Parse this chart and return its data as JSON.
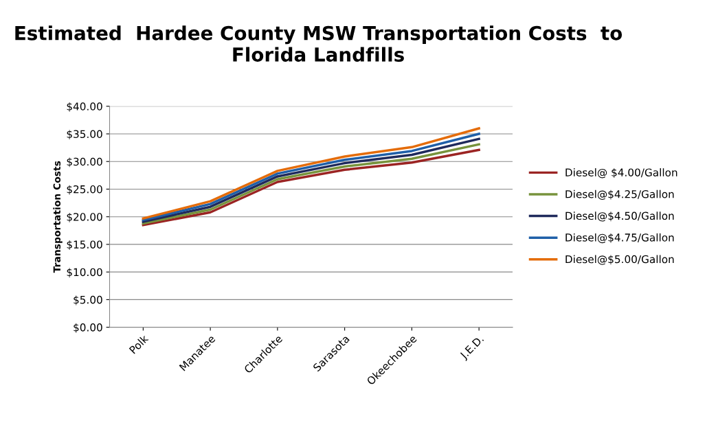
{
  "chart_data": {
    "type": "line",
    "title": "Estimated  Hardee County MSW Transportation Costs  to Florida Landfills",
    "ylabel": "Transportation Costs",
    "categories": [
      "Polk",
      "Manatee",
      "Charlotte",
      "Sarasota",
      "Okeechobee",
      "J.E.D."
    ],
    "series": [
      {
        "name": "Diesel@ $4.00/Gallon",
        "color": "#9b2423",
        "values": [
          18.5,
          20.8,
          26.3,
          28.5,
          29.8,
          32.1
        ]
      },
      {
        "name": "Diesel@$4.25/Gallon",
        "color": "#77933c",
        "values": [
          18.8,
          21.3,
          26.8,
          29.1,
          30.5,
          33.1
        ]
      },
      {
        "name": "Diesel@$4.50/Gallon",
        "color": "#1f2a5c",
        "values": [
          19.1,
          21.8,
          27.3,
          29.7,
          31.2,
          34.1
        ]
      },
      {
        "name": "Diesel@$4.75/Gallon",
        "color": "#1f5fa8",
        "values": [
          19.4,
          22.3,
          27.8,
          30.3,
          31.9,
          35.0
        ]
      },
      {
        "name": "Diesel@$5.00/Gallon",
        "color": "#e46c0a",
        "values": [
          19.7,
          22.8,
          28.3,
          30.9,
          32.6,
          36.0
        ]
      }
    ],
    "ylim": [
      0,
      40
    ],
    "yticks": [
      {
        "value": 0,
        "label": "$0.00"
      },
      {
        "value": 5,
        "label": "$5.00"
      },
      {
        "value": 10,
        "label": "$10.00"
      },
      {
        "value": 15,
        "label": "$15.00"
      },
      {
        "value": 20,
        "label": "$20.00"
      },
      {
        "value": 25,
        "label": "$25.00"
      },
      {
        "value": 30,
        "label": "$30.00"
      },
      {
        "value": 35,
        "label": "$35.00"
      },
      {
        "value": 40,
        "label": "$40.00"
      }
    ],
    "grid": "y",
    "legend": "right",
    "marker": "none",
    "line_style": "solid"
  }
}
